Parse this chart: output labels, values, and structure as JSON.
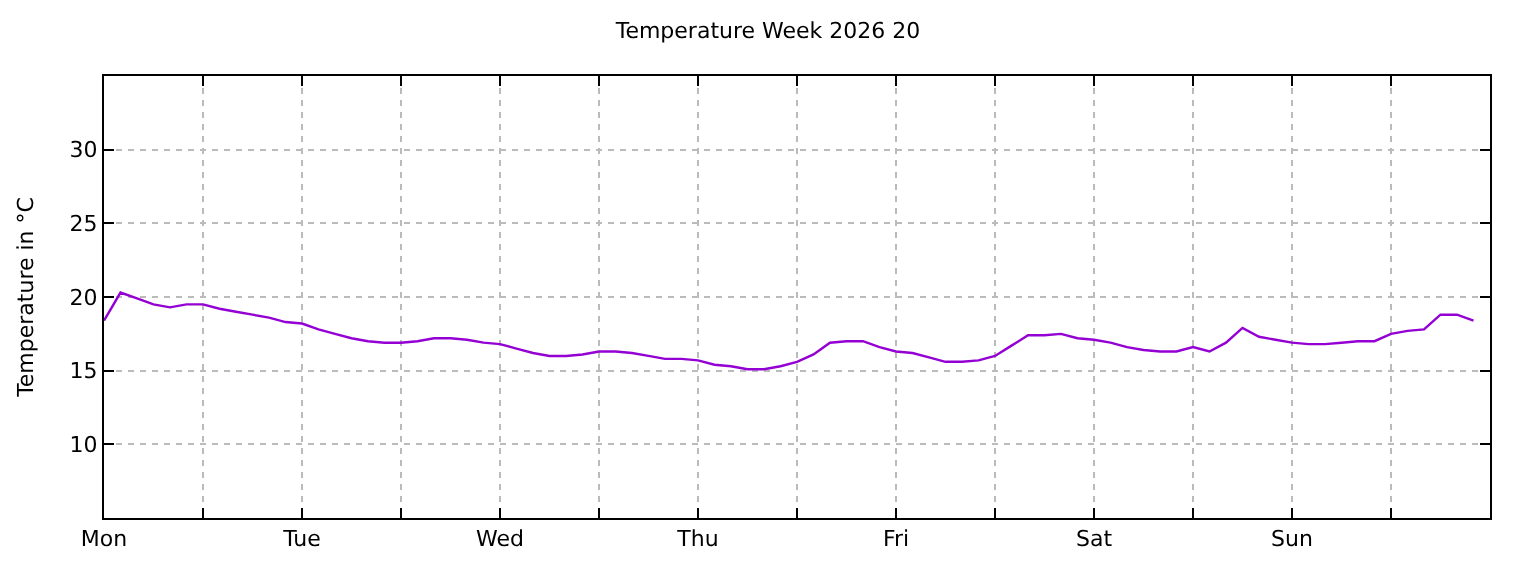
{
  "chart_data": {
    "type": "line",
    "title": "Temperature Week 2026 20",
    "ylabel": "Temperature in °C",
    "ylim": [
      5,
      35
    ],
    "yticks": [
      10,
      15,
      20,
      25,
      30
    ],
    "grid": true,
    "marker": "none",
    "line_style": "solid",
    "categories": [
      "Mon",
      null,
      null,
      null,
      null,
      null,
      null,
      null,
      null,
      null,
      null,
      null,
      "Tue",
      null,
      null,
      null,
      null,
      null,
      null,
      null,
      null,
      null,
      null,
      null,
      "Wed",
      null,
      null,
      null,
      null,
      null,
      null,
      null,
      null,
      null,
      null,
      null,
      "Thu",
      null,
      null,
      null,
      null,
      null,
      null,
      null,
      null,
      null,
      null,
      null,
      "Fri",
      null,
      null,
      null,
      null,
      null,
      null,
      null,
      null,
      null,
      null,
      null,
      "Sat",
      null,
      null,
      null,
      null,
      null,
      null,
      null,
      null,
      null,
      null,
      null,
      "Sun",
      null,
      null,
      null,
      null,
      null,
      null,
      null,
      null,
      null,
      null,
      null
    ],
    "series": [
      {
        "color": "#9400d3",
        "values": [
          18.4,
          20.3,
          19.9,
          19.5,
          19.3,
          19.5,
          19.5,
          19.2,
          19.0,
          18.8,
          18.6,
          18.3,
          18.2,
          17.8,
          17.5,
          17.2,
          17.0,
          16.9,
          16.9,
          17.0,
          17.2,
          17.2,
          17.1,
          16.9,
          16.8,
          16.5,
          16.2,
          16.0,
          16.0,
          16.1,
          16.3,
          16.3,
          16.2,
          16.0,
          15.8,
          15.8,
          15.7,
          15.4,
          15.3,
          15.1,
          15.1,
          15.3,
          15.6,
          16.1,
          16.9,
          17.0,
          17.0,
          16.6,
          16.3,
          16.2,
          15.9,
          15.6,
          15.6,
          15.7,
          16.0,
          16.7,
          17.4,
          17.4,
          17.5,
          17.2,
          17.1,
          16.9,
          16.6,
          16.4,
          16.3,
          16.3,
          16.6,
          16.3,
          16.9,
          17.9,
          17.3,
          17.1,
          16.9,
          16.8,
          16.8,
          16.9,
          17.0,
          17.0,
          17.5,
          17.7,
          17.8,
          18.8,
          18.8,
          18.4
        ]
      }
    ]
  }
}
